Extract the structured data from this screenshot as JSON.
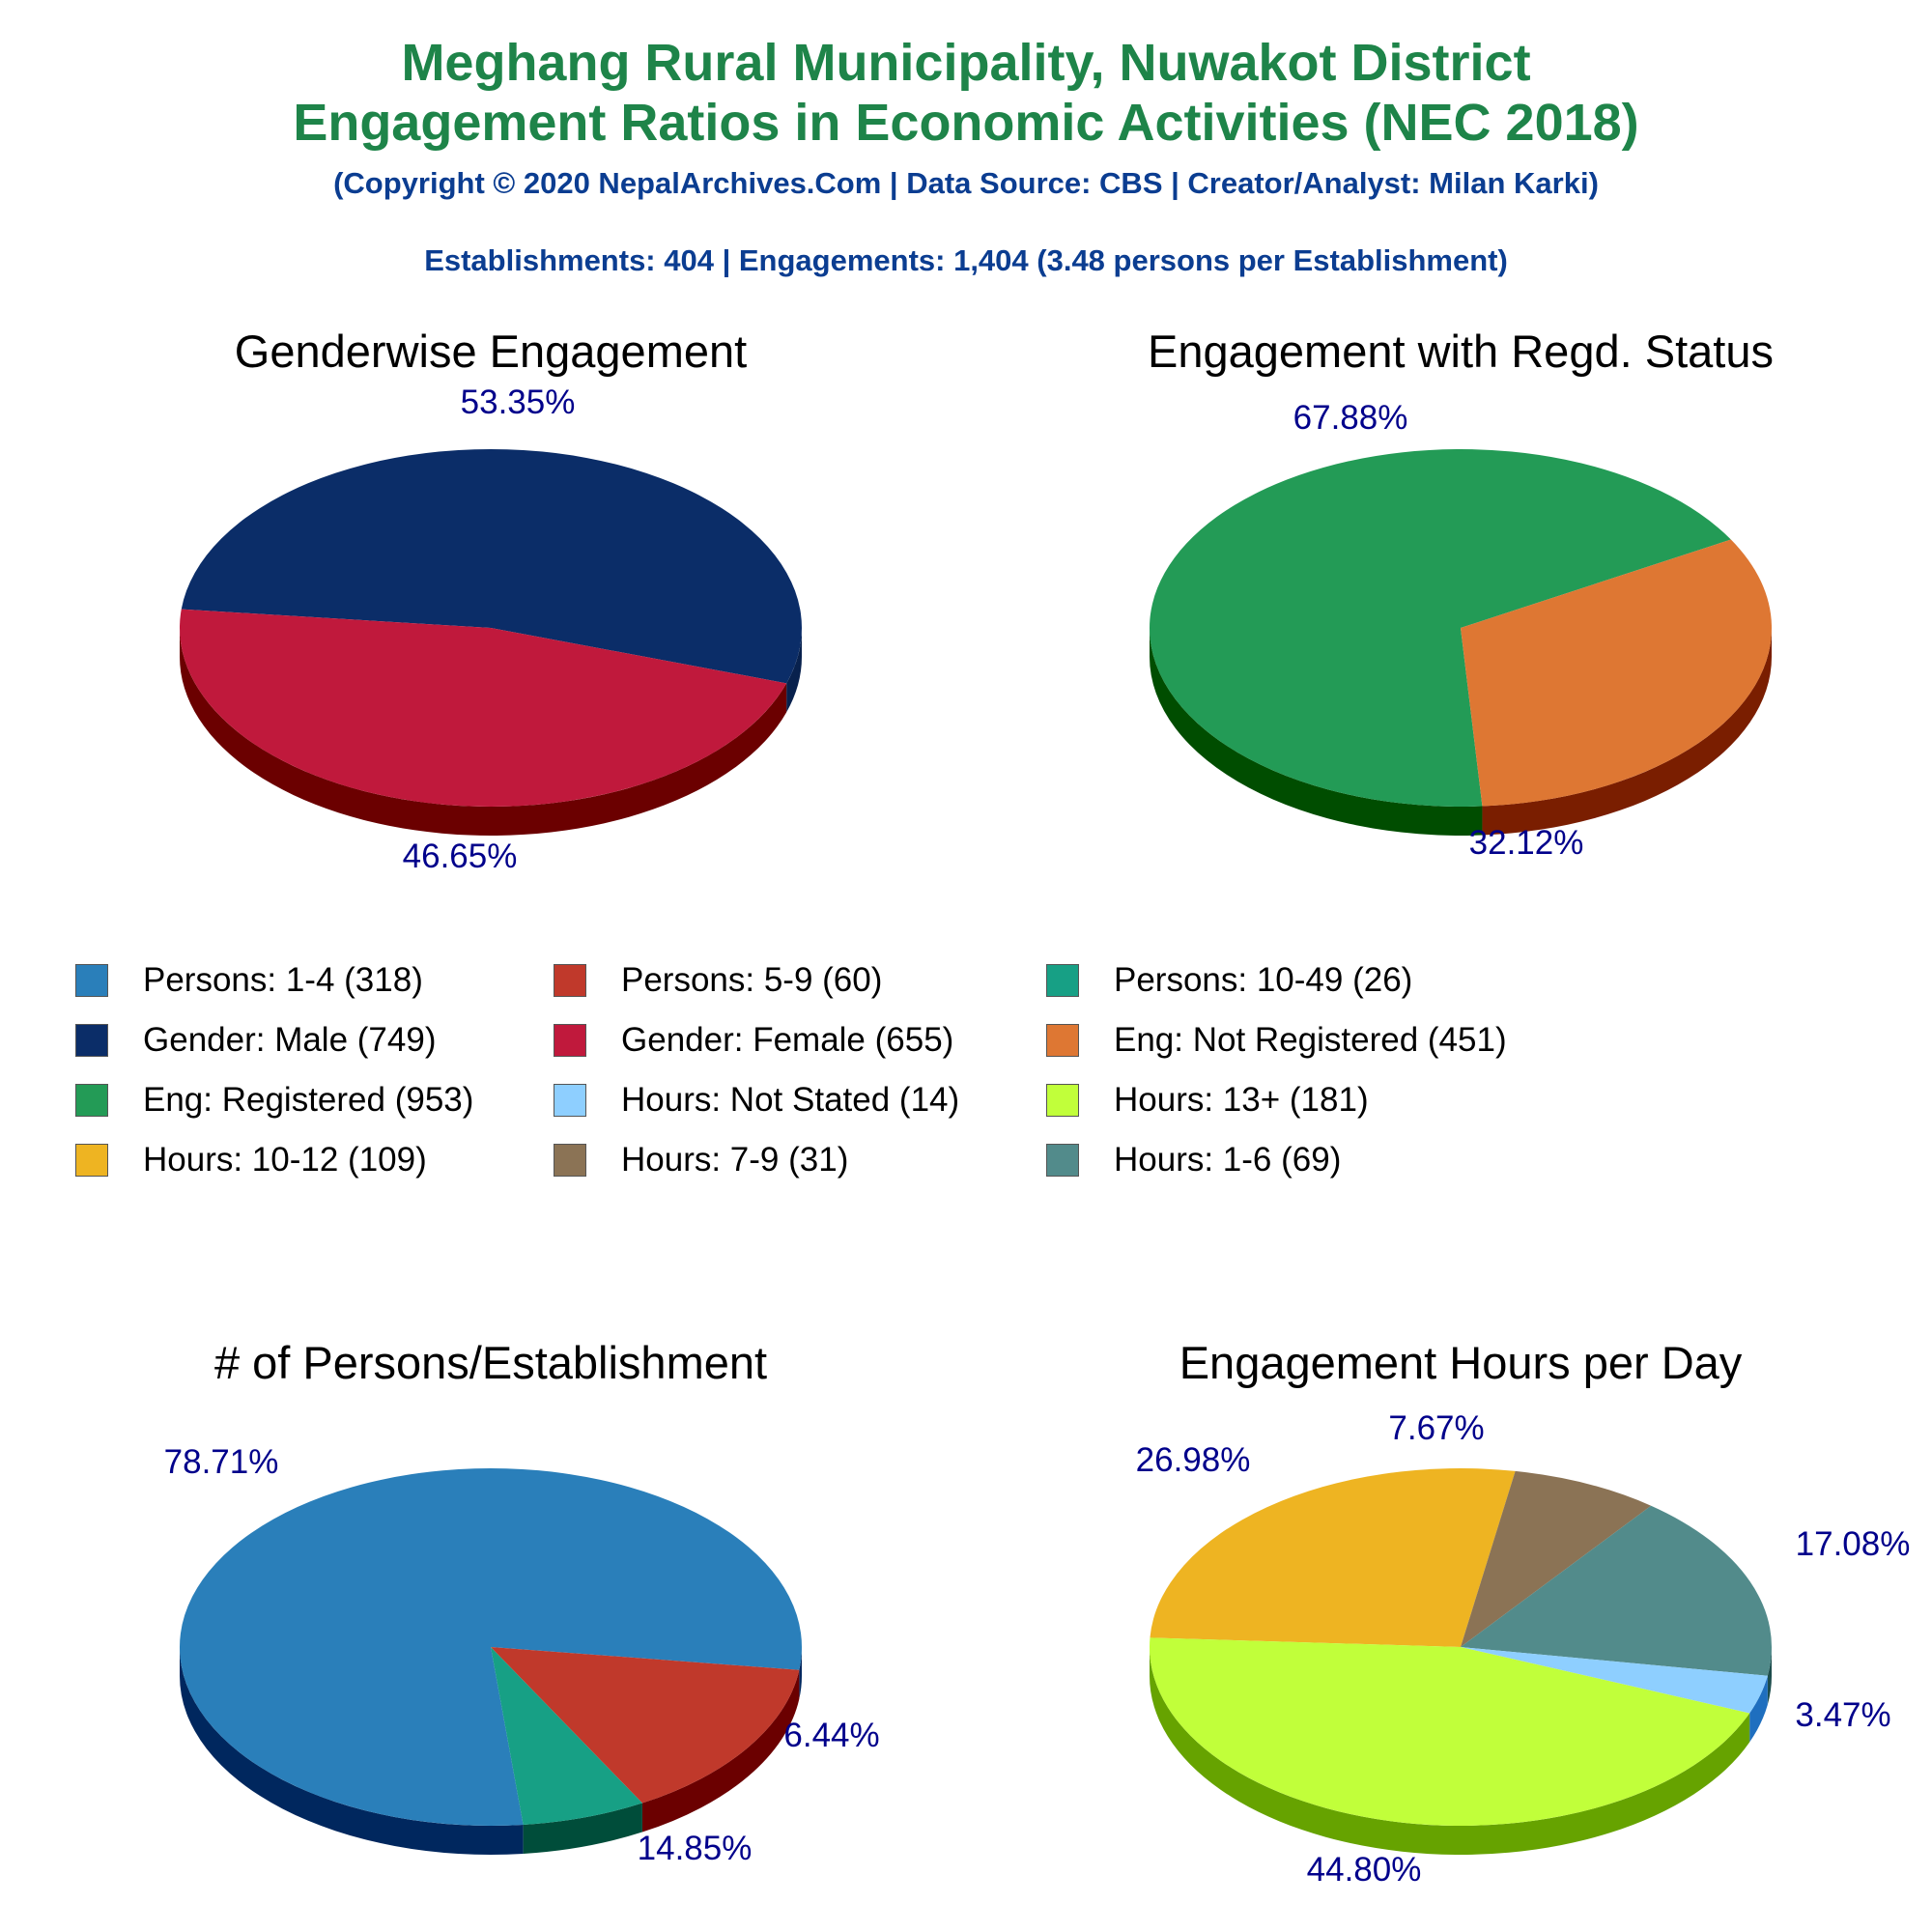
{
  "header": {
    "title_line1": "Meghang Rural Municipality, Nuwakot District",
    "title_line2": "Engagement Ratios in Economic Activities (NEC 2018)",
    "copyright": "(Copyright © 2020 NepalArchives.Com | Data Source: CBS | Creator/Analyst: Milan Karki)",
    "summary": "Establishments: 404 | Engagements: 1,404 (3.48 persons per Establishment)"
  },
  "colors": {
    "title": "#1e8449",
    "subtitle": "#0b3d91",
    "slice_label": "#00008b"
  },
  "legend": [
    {
      "label": "Persons: 1-4 (318)",
      "color": "#2a7fba"
    },
    {
      "label": "Persons: 5-9 (60)",
      "color": "#c0392b"
    },
    {
      "label": "Persons: 10-49 (26)",
      "color": "#17a085"
    },
    {
      "label": "Gender: Male (749)",
      "color": "#0b2d68"
    },
    {
      "label": "Gender: Female (655)",
      "color": "#c0193c"
    },
    {
      "label": "Eng: Not Registered (451)",
      "color": "#de7733"
    },
    {
      "label": "Eng: Registered (953)",
      "color": "#239b56"
    },
    {
      "label": "Hours: Not Stated (14)",
      "color": "#8ecfff"
    },
    {
      "label": "Hours: 13+ (181)",
      "color": "#c1ff3a"
    },
    {
      "label": "Hours: 10-12 (109)",
      "color": "#eeb422"
    },
    {
      "label": "Hours: 7-9 (31)",
      "color": "#8b7355"
    },
    {
      "label": "Hours: 1-6 (69)",
      "color": "#528b8b"
    }
  ],
  "chart_data": [
    {
      "type": "pie",
      "title": "Genderwise Engagement",
      "slices": [
        {
          "label": "Gender: Male",
          "value": 749,
          "percent_label": "53.35%",
          "color": "#0b2d68",
          "side": "#08214d"
        },
        {
          "label": "Gender: Female",
          "value": 655,
          "percent_label": "46.65%",
          "color": "#c0193c",
          "side": "#6b0000"
        }
      ]
    },
    {
      "type": "pie",
      "title": "Engagement with Regd. Status",
      "slices": [
        {
          "label": "Eng: Registered",
          "value": 953,
          "percent_label": "67.88%",
          "color": "#239b56",
          "side": "#004d00"
        },
        {
          "label": "Eng: Not Registered",
          "value": 451,
          "percent_label": "32.12%",
          "color": "#de7733",
          "side": "#7a1e00"
        }
      ]
    },
    {
      "type": "pie",
      "title": "# of Persons/Establishment",
      "slices": [
        {
          "label": "Persons: 1-4",
          "value": 318,
          "percent_label": "78.71%",
          "color": "#2a7fba",
          "side": "#00275e"
        },
        {
          "label": "Persons: 5-9",
          "value": 60,
          "percent_label": "14.85%",
          "color": "#c0392b",
          "side": "#6b0000"
        },
        {
          "label": "Persons: 10-49",
          "value": 26,
          "percent_label": "6.44%",
          "color": "#17a085",
          "side": "#004d3a"
        }
      ]
    },
    {
      "type": "pie",
      "title": "Engagement Hours per Day",
      "slices": [
        {
          "label": "Hours: 10-12",
          "value": 109,
          "percent_label": "26.98%",
          "color": "#eeb422",
          "side": "#9c6c00"
        },
        {
          "label": "Hours: 7-9",
          "value": 31,
          "percent_label": "7.67%",
          "color": "#8b7355",
          "side": "#4d3a20"
        },
        {
          "label": "Hours: 1-6",
          "value": 69,
          "percent_label": "17.08%",
          "color": "#528b8b",
          "side": "#1d4d4d"
        },
        {
          "label": "Hours: Not Stated",
          "value": 14,
          "percent_label": "3.47%",
          "color": "#8ecfff",
          "side": "#1f6fbf"
        },
        {
          "label": "Hours: 13+",
          "value": 181,
          "percent_label": "44.80%",
          "color": "#c1ff3a",
          "side": "#66a300"
        }
      ]
    }
  ]
}
